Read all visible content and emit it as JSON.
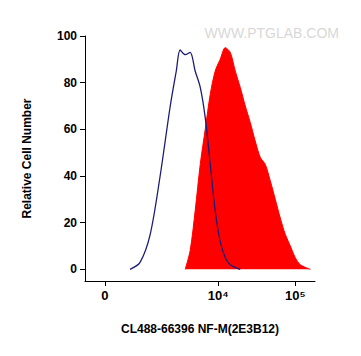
{
  "chart_data": {
    "type": "line",
    "xlabel": "CL488-66396 NF-M(2E3B12)",
    "ylabel": "Relative Cell Number",
    "annotation": "WWW.PTGLAB.COM",
    "log": "x",
    "grid": false,
    "xlim": [
      -430,
      180000
    ],
    "xticks": [
      0,
      {
        "value": 10000,
        "label": "10⁴"
      },
      {
        "value": 100000,
        "label": "10⁵"
      }
    ],
    "ylim": [
      -5,
      100
    ],
    "yticks": [
      0,
      20,
      40,
      60,
      80,
      100
    ],
    "series": [
      {
        "type": "line",
        "color": "#1c1c78",
        "x": [
          558,
          850,
          1224,
          1700,
          2340,
          2820,
          3175,
          3700,
          4300,
          5000,
          5830,
          6770,
          7870,
          9130,
          10600,
          12330,
          14300,
          19300
        ],
        "values": [
          0,
          3,
          15,
          40,
          70,
          85,
          94,
          92,
          93,
          85,
          78,
          65,
          45,
          25,
          12,
          5,
          2,
          0
        ]
      },
      {
        "type": "area",
        "color": "#ff0000",
        "x": [
          3700,
          4300,
          5000,
          5830,
          6770,
          7870,
          9130,
          10600,
          12330,
          14300,
          16630,
          19300,
          22440,
          26000,
          30200,
          35100,
          40700,
          47300,
          55000,
          63800,
          74100,
          86100,
          100000,
          116000,
          156700
        ],
        "values": [
          0,
          8,
          25,
          45,
          60,
          75,
          85,
          90,
          95,
          93,
          85,
          78,
          70,
          63,
          55,
          48,
          45,
          38,
          30,
          22,
          15,
          10,
          5,
          2,
          0
        ]
      }
    ]
  }
}
